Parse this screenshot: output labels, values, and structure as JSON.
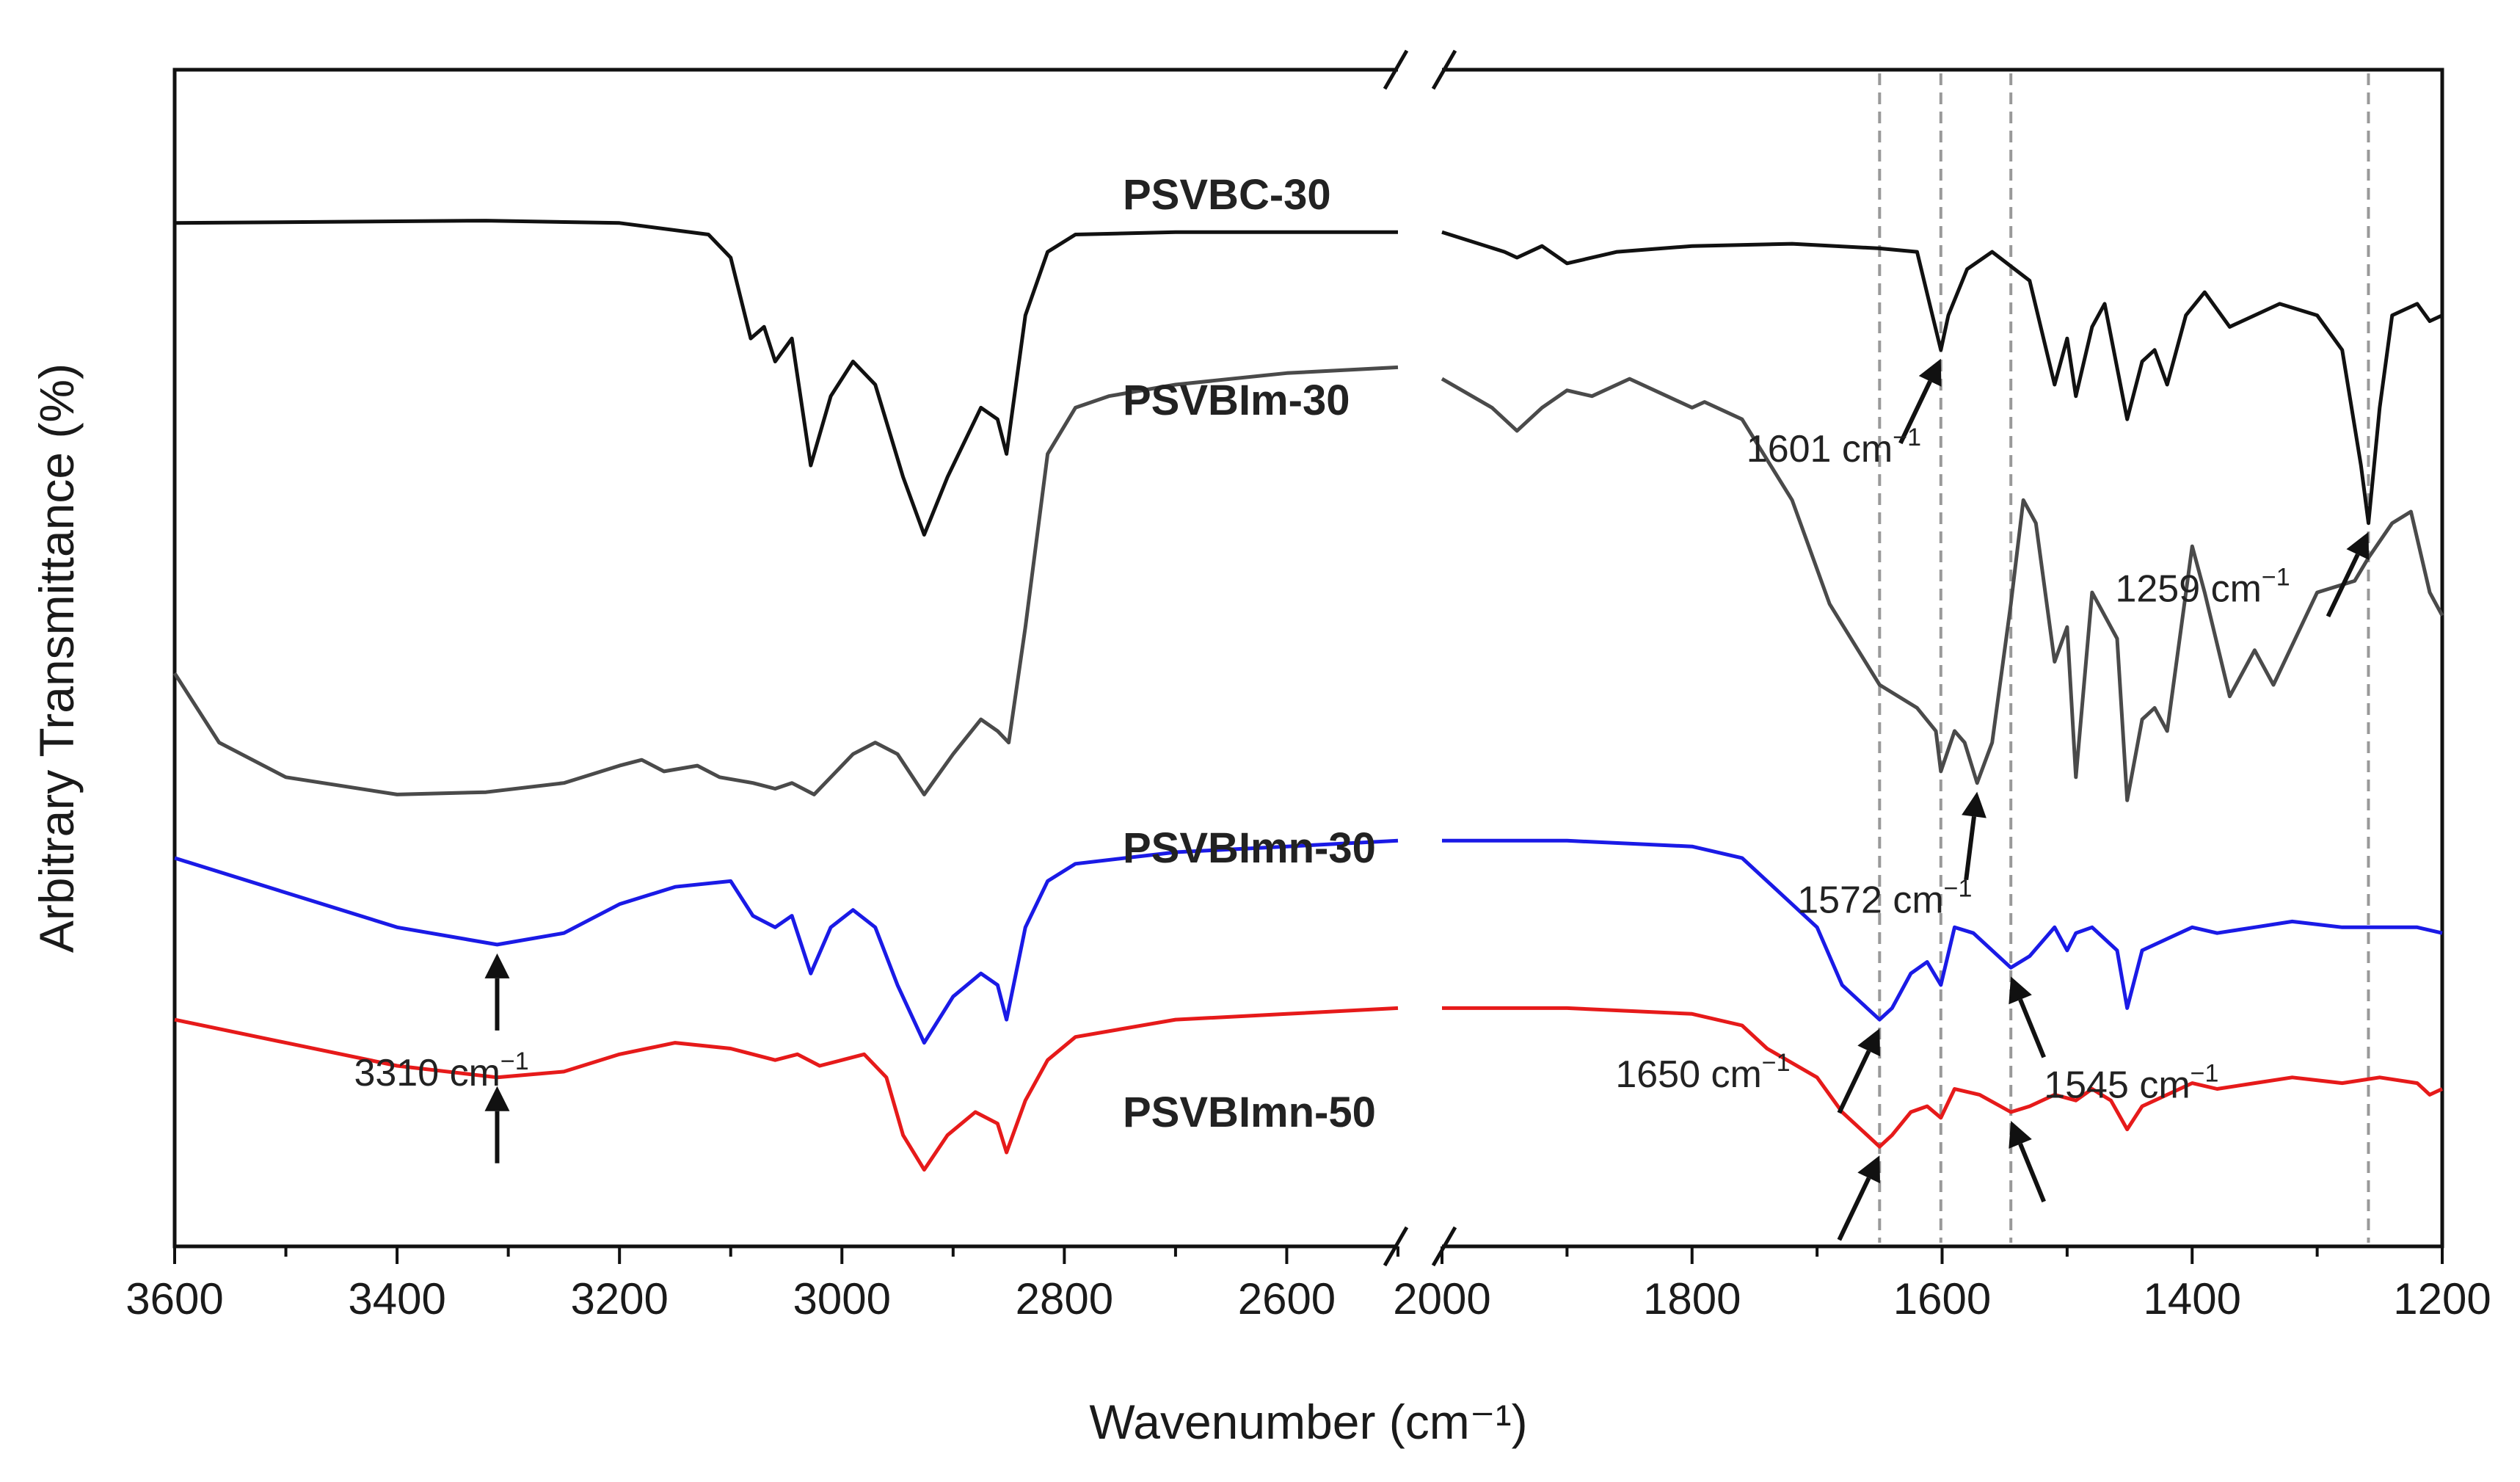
{
  "chart_data": {
    "type": "line",
    "title": "",
    "xlabel": "Wavenumber (cm⁻¹)",
    "ylabel": "Arbitrary Transmittance (%)",
    "x_axis_break": {
      "left_range": [
        3600,
        2500
      ],
      "right_range": [
        2000,
        1200
      ]
    },
    "xlim": [
      3600,
      1200
    ],
    "left_ticks": [
      "3600",
      "3400",
      "3200",
      "3000",
      "2800",
      "2600"
    ],
    "right_ticks": [
      "2000",
      "1800",
      "1600",
      "1400",
      "1200"
    ],
    "y_units": "arbitrary (stacked, offset)",
    "series": [
      {
        "name": "PSVBC-30",
        "label": "PSVBC-30",
        "color": "#111111",
        "base": 0.88,
        "points": [
          [
            3600,
            0.88
          ],
          [
            3320,
            0.882
          ],
          [
            3200,
            0.88
          ],
          [
            3120,
            0.87
          ],
          [
            3100,
            0.85
          ],
          [
            3082,
            0.78
          ],
          [
            3070,
            0.79
          ],
          [
            3060,
            0.76
          ],
          [
            3045,
            0.78
          ],
          [
            3028,
            0.67
          ],
          [
            3010,
            0.73
          ],
          [
            2990,
            0.76
          ],
          [
            2970,
            0.74
          ],
          [
            2945,
            0.66
          ],
          [
            2926,
            0.61
          ],
          [
            2905,
            0.66
          ],
          [
            2875,
            0.72
          ],
          [
            2860,
            0.71
          ],
          [
            2852,
            0.68
          ],
          [
            2835,
            0.8
          ],
          [
            2815,
            0.855
          ],
          [
            2790,
            0.87
          ],
          [
            2700,
            0.872
          ],
          [
            2500,
            0.872
          ],
          [
            2000,
            0.872
          ],
          [
            1950,
            0.855
          ],
          [
            1940,
            0.85
          ],
          [
            1920,
            0.86
          ],
          [
            1900,
            0.845
          ],
          [
            1860,
            0.855
          ],
          [
            1800,
            0.86
          ],
          [
            1720,
            0.862
          ],
          [
            1650,
            0.858
          ],
          [
            1620,
            0.855
          ],
          [
            1610,
            0.81
          ],
          [
            1601,
            0.77
          ],
          [
            1595,
            0.8
          ],
          [
            1580,
            0.84
          ],
          [
            1560,
            0.855
          ],
          [
            1530,
            0.83
          ],
          [
            1510,
            0.74
          ],
          [
            1500,
            0.78
          ],
          [
            1493,
            0.73
          ],
          [
            1480,
            0.79
          ],
          [
            1470,
            0.81
          ],
          [
            1452,
            0.71
          ],
          [
            1440,
            0.76
          ],
          [
            1430,
            0.77
          ],
          [
            1420,
            0.74
          ],
          [
            1405,
            0.8
          ],
          [
            1390,
            0.82
          ],
          [
            1370,
            0.79
          ],
          [
            1350,
            0.8
          ],
          [
            1330,
            0.81
          ],
          [
            1300,
            0.8
          ],
          [
            1280,
            0.77
          ],
          [
            1265,
            0.67
          ],
          [
            1259,
            0.62
          ],
          [
            1250,
            0.72
          ],
          [
            1240,
            0.8
          ],
          [
            1220,
            0.81
          ],
          [
            1210,
            0.795
          ],
          [
            1200,
            0.8
          ]
        ]
      },
      {
        "name": "PSVBIm-30",
        "label": "PSVBIm-30",
        "color": "#4a4a4a",
        "base": 0.6,
        "points": [
          [
            3600,
            0.49
          ],
          [
            3560,
            0.43
          ],
          [
            3500,
            0.4
          ],
          [
            3400,
            0.385
          ],
          [
            3320,
            0.387
          ],
          [
            3250,
            0.395
          ],
          [
            3200,
            0.41
          ],
          [
            3180,
            0.415
          ],
          [
            3160,
            0.405
          ],
          [
            3130,
            0.41
          ],
          [
            3110,
            0.4
          ],
          [
            3080,
            0.395
          ],
          [
            3060,
            0.39
          ],
          [
            3045,
            0.395
          ],
          [
            3025,
            0.385
          ],
          [
            3010,
            0.4
          ],
          [
            2990,
            0.42
          ],
          [
            2970,
            0.43
          ],
          [
            2950,
            0.42
          ],
          [
            2926,
            0.385
          ],
          [
            2900,
            0.42
          ],
          [
            2875,
            0.45
          ],
          [
            2860,
            0.44
          ],
          [
            2850,
            0.43
          ],
          [
            2835,
            0.53
          ],
          [
            2815,
            0.68
          ],
          [
            2790,
            0.72
          ],
          [
            2760,
            0.73
          ],
          [
            2700,
            0.74
          ],
          [
            2600,
            0.75
          ],
          [
            2500,
            0.755
          ],
          [
            2000,
            0.745
          ],
          [
            1960,
            0.72
          ],
          [
            1940,
            0.7
          ],
          [
            1920,
            0.72
          ],
          [
            1900,
            0.735
          ],
          [
            1880,
            0.73
          ],
          [
            1850,
            0.745
          ],
          [
            1820,
            0.73
          ],
          [
            1800,
            0.72
          ],
          [
            1790,
            0.725
          ],
          [
            1760,
            0.71
          ],
          [
            1720,
            0.64
          ],
          [
            1690,
            0.55
          ],
          [
            1650,
            0.48
          ],
          [
            1620,
            0.46
          ],
          [
            1605,
            0.44
          ],
          [
            1601,
            0.405
          ],
          [
            1590,
            0.44
          ],
          [
            1582,
            0.43
          ],
          [
            1572,
            0.395
          ],
          [
            1560,
            0.43
          ],
          [
            1545,
            0.55
          ],
          [
            1535,
            0.64
          ],
          [
            1525,
            0.62
          ],
          [
            1510,
            0.5
          ],
          [
            1500,
            0.53
          ],
          [
            1493,
            0.4
          ],
          [
            1480,
            0.56
          ],
          [
            1460,
            0.52
          ],
          [
            1452,
            0.38
          ],
          [
            1440,
            0.45
          ],
          [
            1430,
            0.46
          ],
          [
            1420,
            0.44
          ],
          [
            1400,
            0.6
          ],
          [
            1390,
            0.56
          ],
          [
            1370,
            0.47
          ],
          [
            1350,
            0.51
          ],
          [
            1335,
            0.48
          ],
          [
            1300,
            0.56
          ],
          [
            1270,
            0.57
          ],
          [
            1259,
            0.59
          ],
          [
            1240,
            0.62
          ],
          [
            1225,
            0.63
          ],
          [
            1210,
            0.56
          ],
          [
            1200,
            0.54
          ]
        ]
      },
      {
        "name": "PSVBImn-30",
        "label": "PSVBImn-30",
        "color": "#1a1ae6",
        "base": 0.35,
        "points": [
          [
            3600,
            0.33
          ],
          [
            3500,
            0.3
          ],
          [
            3400,
            0.27
          ],
          [
            3310,
            0.255
          ],
          [
            3250,
            0.265
          ],
          [
            3200,
            0.29
          ],
          [
            3150,
            0.305
          ],
          [
            3100,
            0.31
          ],
          [
            3080,
            0.28
          ],
          [
            3060,
            0.27
          ],
          [
            3045,
            0.28
          ],
          [
            3028,
            0.23
          ],
          [
            3010,
            0.27
          ],
          [
            2990,
            0.285
          ],
          [
            2970,
            0.27
          ],
          [
            2950,
            0.22
          ],
          [
            2926,
            0.17
          ],
          [
            2900,
            0.21
          ],
          [
            2875,
            0.23
          ],
          [
            2860,
            0.22
          ],
          [
            2852,
            0.19
          ],
          [
            2835,
            0.27
          ],
          [
            2815,
            0.31
          ],
          [
            2790,
            0.325
          ],
          [
            2700,
            0.335
          ],
          [
            2600,
            0.34
          ],
          [
            2500,
            0.345
          ],
          [
            2000,
            0.345
          ],
          [
            1900,
            0.345
          ],
          [
            1800,
            0.34
          ],
          [
            1760,
            0.33
          ],
          [
            1720,
            0.29
          ],
          [
            1700,
            0.27
          ],
          [
            1680,
            0.22
          ],
          [
            1660,
            0.2
          ],
          [
            1650,
            0.19
          ],
          [
            1640,
            0.2
          ],
          [
            1625,
            0.23
          ],
          [
            1612,
            0.24
          ],
          [
            1601,
            0.22
          ],
          [
            1590,
            0.27
          ],
          [
            1575,
            0.265
          ],
          [
            1560,
            0.25
          ],
          [
            1545,
            0.235
          ],
          [
            1530,
            0.245
          ],
          [
            1510,
            0.27
          ],
          [
            1500,
            0.25
          ],
          [
            1493,
            0.265
          ],
          [
            1480,
            0.27
          ],
          [
            1460,
            0.25
          ],
          [
            1452,
            0.2
          ],
          [
            1440,
            0.25
          ],
          [
            1420,
            0.26
          ],
          [
            1400,
            0.27
          ],
          [
            1380,
            0.265
          ],
          [
            1350,
            0.27
          ],
          [
            1320,
            0.275
          ],
          [
            1280,
            0.27
          ],
          [
            1250,
            0.27
          ],
          [
            1220,
            0.27
          ],
          [
            1200,
            0.265
          ]
        ]
      },
      {
        "name": "PSVBImn-50",
        "label": "PSVBImn-50",
        "color": "#e61a1a",
        "base": 0.15,
        "points": [
          [
            3600,
            0.19
          ],
          [
            3500,
            0.17
          ],
          [
            3400,
            0.15
          ],
          [
            3310,
            0.14
          ],
          [
            3250,
            0.145
          ],
          [
            3200,
            0.16
          ],
          [
            3150,
            0.17
          ],
          [
            3100,
            0.165
          ],
          [
            3060,
            0.155
          ],
          [
            3040,
            0.16
          ],
          [
            3020,
            0.15
          ],
          [
            3000,
            0.155
          ],
          [
            2980,
            0.16
          ],
          [
            2960,
            0.14
          ],
          [
            2945,
            0.09
          ],
          [
            2926,
            0.06
          ],
          [
            2905,
            0.09
          ],
          [
            2880,
            0.11
          ],
          [
            2860,
            0.1
          ],
          [
            2852,
            0.075
          ],
          [
            2835,
            0.12
          ],
          [
            2815,
            0.155
          ],
          [
            2790,
            0.175
          ],
          [
            2700,
            0.19
          ],
          [
            2600,
            0.195
          ],
          [
            2500,
            0.2
          ],
          [
            2000,
            0.2
          ],
          [
            1900,
            0.2
          ],
          [
            1800,
            0.195
          ],
          [
            1760,
            0.185
          ],
          [
            1740,
            0.165
          ],
          [
            1700,
            0.14
          ],
          [
            1680,
            0.11
          ],
          [
            1660,
            0.09
          ],
          [
            1650,
            0.08
          ],
          [
            1640,
            0.09
          ],
          [
            1625,
            0.11
          ],
          [
            1612,
            0.115
          ],
          [
            1601,
            0.105
          ],
          [
            1590,
            0.13
          ],
          [
            1570,
            0.125
          ],
          [
            1545,
            0.11
          ],
          [
            1530,
            0.115
          ],
          [
            1510,
            0.125
          ],
          [
            1493,
            0.12
          ],
          [
            1480,
            0.13
          ],
          [
            1465,
            0.12
          ],
          [
            1452,
            0.095
          ],
          [
            1440,
            0.115
          ],
          [
            1420,
            0.125
          ],
          [
            1400,
            0.135
          ],
          [
            1380,
            0.13
          ],
          [
            1350,
            0.135
          ],
          [
            1320,
            0.14
          ],
          [
            1280,
            0.135
          ],
          [
            1250,
            0.14
          ],
          [
            1220,
            0.135
          ],
          [
            1210,
            0.125
          ],
          [
            1200,
            0.13
          ]
        ]
      }
    ],
    "guides": [
      1650,
      1601,
      1545,
      1259
    ],
    "annotations": [
      {
        "text": "1601 cm",
        "sup": "−1",
        "at": [
          1601,
          0.77
        ],
        "placement": "below-left"
      },
      {
        "text": "1259 cm",
        "sup": "−1",
        "at": [
          1259,
          0.62
        ],
        "placement": "below-left"
      },
      {
        "text": "1572 cm",
        "sup": "−1",
        "at": [
          1572,
          0.395
        ],
        "placement": "below"
      },
      {
        "text": "3310 cm",
        "sup": "−1",
        "at": [
          3310,
          0.255
        ],
        "placement": "below"
      },
      {
        "text": "1650 cm",
        "sup": "−1",
        "at": [
          1650,
          0.19
        ],
        "placement": "below-left"
      },
      {
        "text": "1545 cm",
        "sup": "−1",
        "at": [
          1545,
          0.235
        ],
        "placement": "below-right"
      },
      {
        "text": "",
        "sup": "",
        "at": [
          3310,
          0.14
        ],
        "placement": "below"
      },
      {
        "text": "",
        "sup": "",
        "at": [
          1650,
          0.08
        ],
        "placement": "below-left"
      },
      {
        "text": "",
        "sup": "",
        "at": [
          1545,
          0.11
        ],
        "placement": "below-right"
      }
    ]
  }
}
